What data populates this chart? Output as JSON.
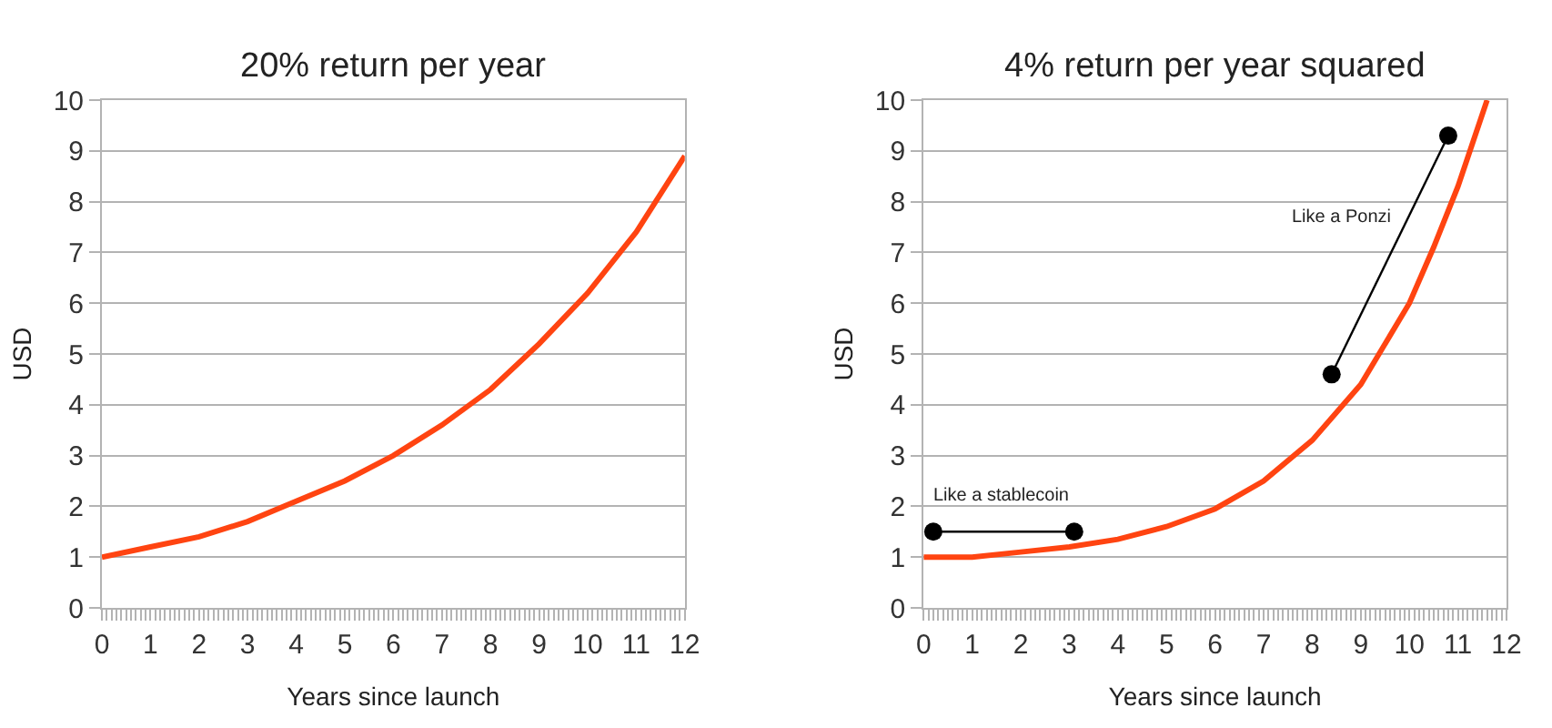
{
  "chart_data": [
    {
      "type": "line",
      "title": "20% return per year",
      "xlabel": "Years since launch",
      "ylabel": "USD",
      "xlim": [
        0,
        12
      ],
      "xticks": [
        0,
        1,
        2,
        3,
        4,
        5,
        6,
        7,
        8,
        9,
        10,
        11,
        12
      ],
      "ylim": [
        0,
        10
      ],
      "yticks": [
        0,
        1,
        2,
        3,
        4,
        5,
        6,
        7,
        8,
        9,
        10
      ],
      "grid": "y",
      "marker": "none",
      "line_style": "solid",
      "series": [
        {
          "color": "#ff4411",
          "x": [
            0,
            1,
            2,
            3,
            4,
            5,
            6,
            7,
            8,
            9,
            10,
            11,
            12
          ],
          "values": [
            1.0,
            1.2,
            1.4,
            1.7,
            2.1,
            2.5,
            3.0,
            3.6,
            4.3,
            5.2,
            6.2,
            7.4,
            8.9
          ]
        }
      ]
    },
    {
      "type": "line",
      "title": "4% return per year squared",
      "xlabel": "Years since launch",
      "ylabel": "USD",
      "xlim": [
        0,
        12
      ],
      "xticks": [
        0,
        1,
        2,
        3,
        4,
        5,
        6,
        7,
        8,
        9,
        10,
        11,
        12
      ],
      "ylim": [
        0,
        10
      ],
      "yticks": [
        0,
        1,
        2,
        3,
        4,
        5,
        6,
        7,
        8,
        9,
        10
      ],
      "grid": "y",
      "marker": "none",
      "line_style": "solid",
      "annotations": [
        "Like a stablecoin",
        "Like a Ponzi"
      ],
      "series": [
        {
          "color": "#ff4411",
          "x": [
            0,
            1,
            2,
            3,
            4,
            5,
            6,
            7,
            8,
            9,
            10,
            10.5,
            11,
            11.6
          ],
          "values": [
            1.0,
            1.0,
            1.1,
            1.2,
            1.35,
            1.6,
            1.95,
            2.5,
            3.3,
            4.4,
            6.0,
            7.1,
            8.3,
            10.0
          ]
        },
        {
          "color": "#000000",
          "marker": "circle",
          "x": [
            0.2,
            3.1
          ],
          "values": [
            1.5,
            1.5
          ]
        },
        {
          "color": "#000000",
          "marker": "circle",
          "x": [
            8.4,
            10.8
          ],
          "values": [
            4.6,
            9.3
          ]
        }
      ]
    }
  ]
}
